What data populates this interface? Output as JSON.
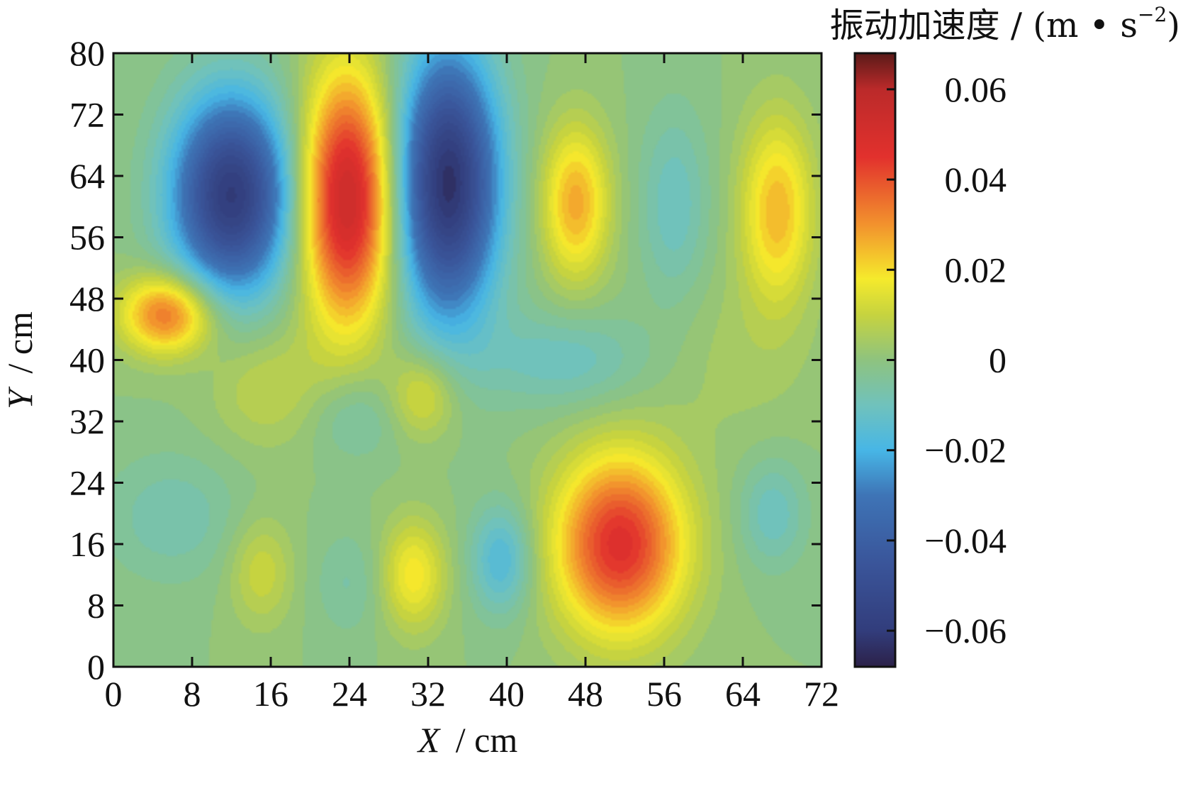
{
  "chart_data": {
    "type": "heatmap",
    "plot_kind": "filled-contour",
    "xlabel": {
      "var": "X",
      "unit": "/ cm"
    },
    "ylabel": {
      "var": "Y",
      "unit": "/ cm"
    },
    "xlim": [
      0,
      72
    ],
    "ylim": [
      0,
      80
    ],
    "x_ticks": [
      "0",
      "8",
      "16",
      "24",
      "32",
      "40",
      "48",
      "56",
      "64",
      "72"
    ],
    "y_ticks": [
      "0",
      "8",
      "16",
      "24",
      "32",
      "40",
      "48",
      "56",
      "64",
      "72",
      "80"
    ],
    "colorbar": {
      "title": {
        "main": "振动加速度 / (m • s",
        "sup": "−2",
        "close": ")"
      },
      "range": [
        -0.068,
        0.068
      ],
      "ticks": [
        "0.06",
        "0.04",
        "0.02",
        "0",
        "−0.02",
        "−0.04",
        "−0.06"
      ],
      "tick_values": [
        0.06,
        0.04,
        0.02,
        0,
        -0.02,
        -0.04,
        -0.06
      ],
      "colormap": [
        [
          -0.068,
          "#2c2149"
        ],
        [
          -0.06,
          "#323d7c"
        ],
        [
          -0.045,
          "#3a559a"
        ],
        [
          -0.03,
          "#3e74b6"
        ],
        [
          -0.02,
          "#47b6e6"
        ],
        [
          -0.01,
          "#70c2bc"
        ],
        [
          0.0,
          "#8ec37f"
        ],
        [
          0.01,
          "#c6d33f"
        ],
        [
          0.018,
          "#f5ea2c"
        ],
        [
          0.03,
          "#f2922d"
        ],
        [
          0.045,
          "#e2312d"
        ],
        [
          0.06,
          "#bb2a2a"
        ],
        [
          0.068,
          "#5a1a18"
        ]
      ]
    },
    "background_value": 0.0,
    "features": [
      {
        "x": 12.0,
        "y": 61.5,
        "value": -0.06,
        "sx": 4.2,
        "sy": 9.0
      },
      {
        "x": 23.8,
        "y": 61.0,
        "value": 0.056,
        "sx": 3.3,
        "sy": 11.5
      },
      {
        "x": 34.0,
        "y": 63.0,
        "value": -0.064,
        "sx": 3.6,
        "sy": 12.0
      },
      {
        "x": 47.0,
        "y": 60.5,
        "value": 0.027,
        "sx": 2.4,
        "sy": 7.0
      },
      {
        "x": 57.0,
        "y": 60.0,
        "value": -0.011,
        "sx": 2.5,
        "sy": 9.0
      },
      {
        "x": 67.5,
        "y": 59.5,
        "value": 0.025,
        "sx": 2.6,
        "sy": 8.5
      },
      {
        "x": 5.5,
        "y": 46.0,
        "value": 0.036,
        "sx": 3.3,
        "sy": 3.6
      },
      {
        "x": 15.5,
        "y": 36.5,
        "value": 0.009,
        "sx": 4.0,
        "sy": 5.5
      },
      {
        "x": 31.5,
        "y": 35.5,
        "value": 0.015,
        "sx": 2.4,
        "sy": 4.0
      },
      {
        "x": 24.5,
        "y": 32.5,
        "value": -0.008,
        "sx": 3.2,
        "sy": 4.0
      },
      {
        "x": 46.0,
        "y": 40.0,
        "value": -0.011,
        "sx": 6.0,
        "sy": 4.5
      },
      {
        "x": 6.0,
        "y": 19.5,
        "value": -0.008,
        "sx": 5.0,
        "sy": 6.0
      },
      {
        "x": 15.0,
        "y": 12.5,
        "value": 0.011,
        "sx": 2.3,
        "sy": 5.0
      },
      {
        "x": 24.0,
        "y": 11.0,
        "value": -0.006,
        "sx": 2.6,
        "sy": 5.0
      },
      {
        "x": 30.5,
        "y": 12.0,
        "value": 0.019,
        "sx": 2.3,
        "sy": 5.0
      },
      {
        "x": 39.5,
        "y": 14.0,
        "value": -0.018,
        "sx": 2.2,
        "sy": 5.0
      },
      {
        "x": 51.5,
        "y": 16.0,
        "value": 0.047,
        "sx": 4.6,
        "sy": 8.2
      },
      {
        "x": 67.0,
        "y": 20.0,
        "value": -0.011,
        "sx": 2.4,
        "sy": 5.0
      },
      {
        "x": 63.0,
        "y": 40.0,
        "value": 0.004,
        "sx": 6.0,
        "sy": 8.0
      }
    ]
  }
}
